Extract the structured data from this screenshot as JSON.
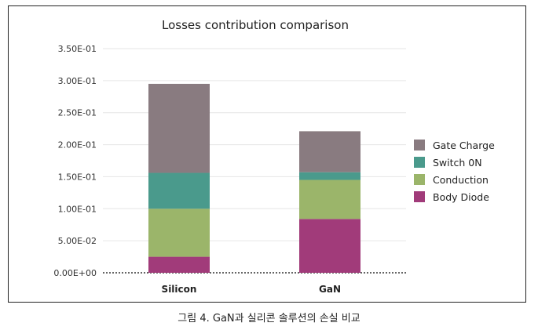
{
  "caption": "그림 4. GaN과 실리콘 솔루션의 손실 비교",
  "chart_data": {
    "type": "bar",
    "stacked": true,
    "title": "Losses contribution comparison",
    "categories": [
      "Silicon",
      "GaN"
    ],
    "ylim": [
      0,
      0.35
    ],
    "yticks": [
      "0.00E+00",
      "5.00E-02",
      "1.00E-01",
      "1.50E-01",
      "2.00E-01",
      "2.50E-01",
      "3.00E-01",
      "3.50E-01"
    ],
    "grid": true,
    "legend_position": "right",
    "series": [
      {
        "name": "Body Diode",
        "color": "#a13b7a",
        "values": [
          0.025,
          0.084
        ]
      },
      {
        "name": "Conduction",
        "color": "#9bb56a",
        "values": [
          0.075,
          0.061
        ]
      },
      {
        "name": "Switch 0N",
        "color": "#4a9a8c",
        "values": [
          0.056,
          0.012
        ]
      },
      {
        "name": "Gate Charge",
        "color": "#897b80",
        "values": [
          0.139,
          0.064
        ]
      }
    ],
    "legend_order": [
      "Gate Charge",
      "Switch 0N",
      "Conduction",
      "Body Diode"
    ]
  }
}
